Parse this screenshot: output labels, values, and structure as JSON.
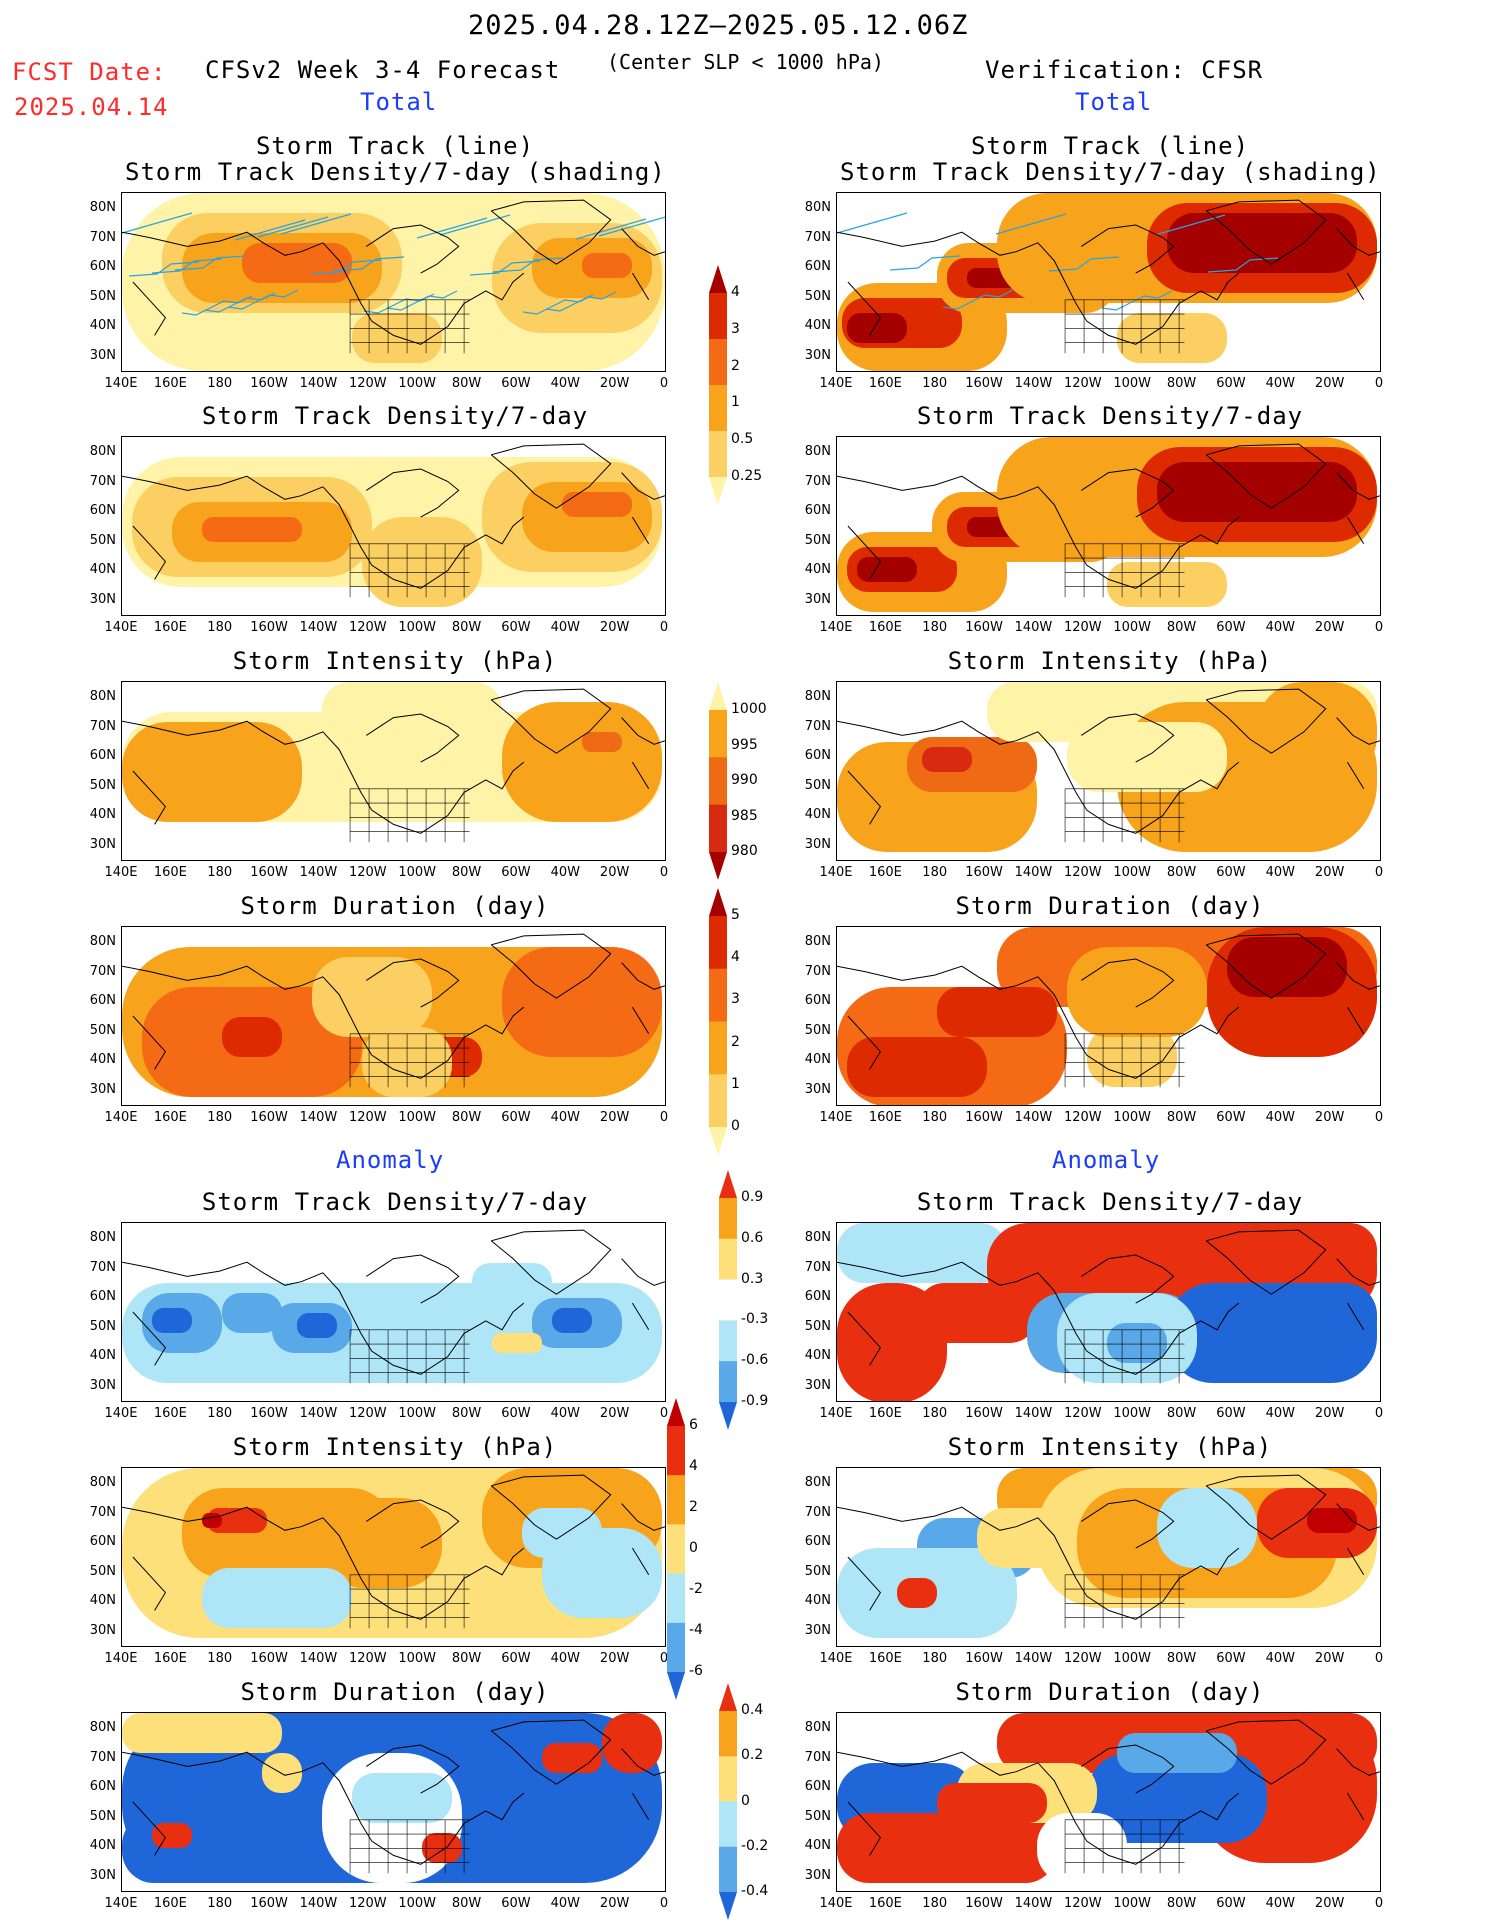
{
  "header": {
    "period": "2025.04.28.12Z–2025.05.12.06Z",
    "fcst_label": "FCST Date:",
    "fcst_date": "2025.04.14",
    "model": "CFSv2 Week 3-4 Forecast",
    "criterion": "(Center SLP < 1000 hPa)",
    "verification": "Verification: CFSR",
    "total_left": "Total",
    "total_right": "Total",
    "anomaly_left": "Anomaly",
    "anomaly_right": "Anomaly"
  },
  "panel_titles": {
    "track_line": "Storm Track (line)",
    "track_density_shading": "Storm Track Density/7-day (shading)",
    "density": "Storm Track Density/7-day",
    "intensity": "Storm Intensity (hPa)",
    "duration": "Storm Duration (day)"
  },
  "axes": {
    "lat_labels": [
      "80N",
      "70N",
      "60N",
      "50N",
      "40N",
      "30N"
    ],
    "lon_labels": [
      "140E",
      "160E",
      "180",
      "160W",
      "140W",
      "120W",
      "100W",
      "80W",
      "60W",
      "40W",
      "20W",
      "0"
    ]
  },
  "colorbars": {
    "density_total": {
      "labels": [
        "4",
        "3",
        "2",
        "1",
        "0.5",
        "0.25"
      ],
      "colors": [
        "#a50000",
        "#dd2a00",
        "#f56a14",
        "#f8a31c",
        "#fccf62",
        "#fff3a8"
      ]
    },
    "intensity_total": {
      "labels": [
        "1000",
        "995",
        "990",
        "985",
        "980"
      ],
      "colors": [
        "#fff3a8",
        "#f8a31c",
        "#ee6a14",
        "#d82a10",
        "#a50000"
      ]
    },
    "duration_total": {
      "labels": [
        "5",
        "4",
        "3",
        "2",
        "1",
        "0"
      ],
      "colors": [
        "#a50000",
        "#dd2a00",
        "#f56a14",
        "#f8a31c",
        "#fccf62",
        "#fff3a8"
      ]
    },
    "density_anom": {
      "labels": [
        "0.9",
        "0.6",
        "0.3",
        "-0.3",
        "-0.6",
        "-0.9"
      ],
      "colors": [
        "#e83010",
        "#f8a31c",
        "#fde07a",
        "#ffffff",
        "#aee6f8",
        "#59a8e8",
        "#1f66d8"
      ]
    },
    "intensity_anom": {
      "labels": [
        "6",
        "4",
        "2",
        "0",
        "-2",
        "-4",
        "-6"
      ],
      "colors": [
        "#c00000",
        "#e83010",
        "#f8a31c",
        "#fde07a",
        "#aee6f8",
        "#59a8e8",
        "#1f66d8"
      ]
    },
    "duration_anom": {
      "labels": [
        "0.4",
        "0.2",
        "0",
        "-0.2",
        "-0.4"
      ],
      "colors": [
        "#e83010",
        "#f8a31c",
        "#fde07a",
        "#aee6f8",
        "#59a8e8",
        "#1f66d8"
      ]
    }
  }
}
